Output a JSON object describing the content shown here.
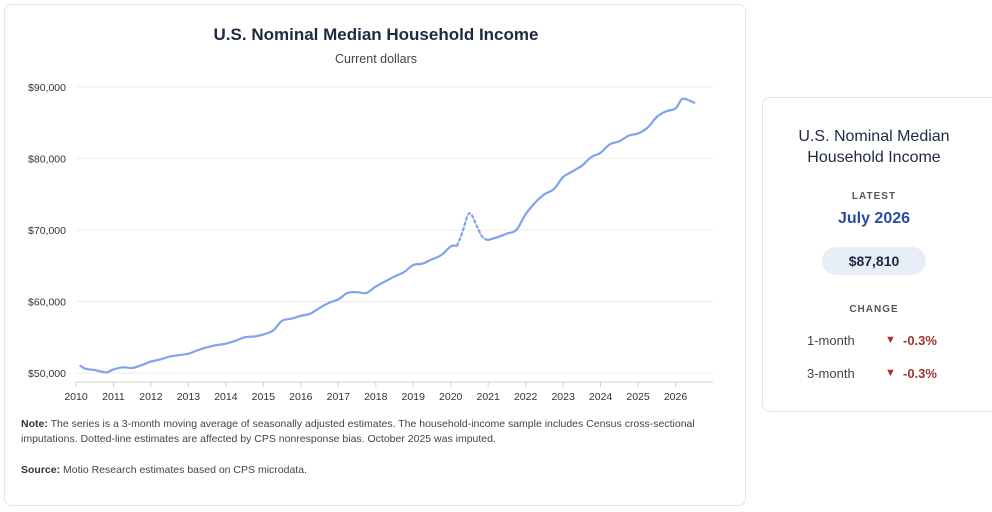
{
  "main": {
    "title": "U.S. Nominal Median Household Income",
    "subtitle": "Current dollars",
    "note_label": "Note:",
    "note_text": "The series is a 3-month moving average of seasonally adjusted estimates. The household-income sample includes Census cross-sectional imputations. Dotted-line estimates are affected by CPS nonresponse bias. October 2025 was imputed.",
    "source_label": "Source:",
    "source_text": "Motio Research estimates based on CPS microdata."
  },
  "chart_data": {
    "type": "line",
    "title": "U.S. Nominal Median Household Income",
    "subtitle": "Current dollars",
    "xlabel": "",
    "ylabel": "",
    "ylim": [
      50000,
      90000
    ],
    "xlim": [
      2010,
      2027
    ],
    "y_ticks": [
      "$50,000",
      "$60,000",
      "$70,000",
      "$80,000",
      "$90,000"
    ],
    "x_ticks": [
      "2010",
      "2011",
      "2012",
      "2013",
      "2014",
      "2015",
      "2016",
      "2017",
      "2018",
      "2019",
      "2020",
      "2021",
      "2022",
      "2023",
      "2024",
      "2025",
      "2026"
    ],
    "grid": "horizontal",
    "line_color": "#7fa3ef",
    "series": [
      {
        "style": "solid",
        "x": [
          2010.12,
          2010.25,
          2010.5,
          2010.8,
          2011.0,
          2011.25,
          2011.5,
          2011.75,
          2012.0,
          2012.25,
          2012.5,
          2012.75,
          2013.0,
          2013.25,
          2013.5,
          2013.75,
          2014.0,
          2014.25,
          2014.5,
          2014.75,
          2015.0,
          2015.25,
          2015.5,
          2015.75,
          2016.0,
          2016.25,
          2016.5,
          2016.75,
          2017.0,
          2017.25,
          2017.5,
          2017.75,
          2018.0,
          2018.25,
          2018.5,
          2018.75,
          2019.0,
          2019.25,
          2019.5,
          2019.75,
          2020.0,
          2020.17
        ],
        "y": [
          51000,
          50600,
          50400,
          50100,
          50500,
          50800,
          50700,
          51100,
          51600,
          51900,
          52300,
          52500,
          52700,
          53200,
          53600,
          53900,
          54100,
          54500,
          55000,
          55100,
          55400,
          55900,
          57300,
          57600,
          58000,
          58300,
          59100,
          59800,
          60300,
          61200,
          61300,
          61200,
          62100,
          62800,
          63500,
          64100,
          65100,
          65300,
          65900,
          66500,
          67700,
          67800
        ]
      },
      {
        "style": "dotted",
        "x": [
          2020.17,
          2020.3,
          2020.45,
          2020.55,
          2020.7,
          2020.85,
          2021.0
        ],
        "y": [
          67800,
          69500,
          72000,
          72200,
          70500,
          69000,
          68600
        ]
      },
      {
        "style": "solid",
        "x": [
          2021.0,
          2021.25,
          2021.5,
          2021.75,
          2022.0,
          2022.25,
          2022.5,
          2022.75,
          2023.0,
          2023.25,
          2023.5,
          2023.75,
          2024.0,
          2024.25,
          2024.5,
          2024.75,
          2025.0,
          2025.25,
          2025.5,
          2025.75,
          2026.0,
          2026.17,
          2026.33,
          2026.5
        ],
        "y": [
          68600,
          69000,
          69500,
          70000,
          72200,
          73800,
          75000,
          75700,
          77400,
          78200,
          79000,
          80200,
          80800,
          82000,
          82400,
          83200,
          83500,
          84300,
          85800,
          86600,
          87000,
          88300,
          88200,
          87810
        ]
      }
    ]
  },
  "summary": {
    "title": "U.S. Nominal Median Household Income",
    "latest_label": "LATEST",
    "latest_date": "July 2026",
    "latest_value": "$87,810",
    "change_label": "CHANGE",
    "changes": [
      {
        "period": "1-month",
        "arrow": "▼",
        "value": "-0.3%"
      },
      {
        "period": "3-month",
        "arrow": "▼",
        "value": "-0.3%"
      }
    ]
  }
}
